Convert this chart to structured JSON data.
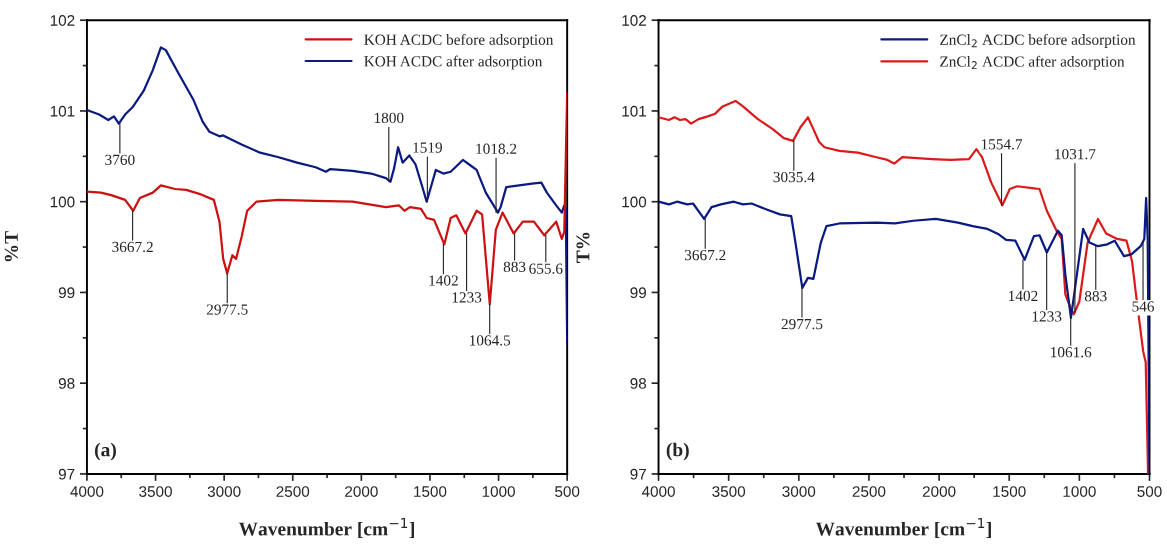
{
  "chart_data": [
    {
      "type": "line",
      "xlabel": "Wavenumber [cm$^{−1}$]",
      "ylabel": "%T",
      "xlim": [
        4000,
        500
      ],
      "ylim": [
        97,
        102
      ],
      "xticks": [
        4000,
        3500,
        3000,
        2500,
        2000,
        1500,
        1000,
        500
      ],
      "yticks": [
        97,
        98,
        99,
        100,
        101,
        102
      ],
      "grid": false,
      "legend": "top right",
      "marker": "none",
      "line_style": "solid",
      "series": [
        {
          "name": "KOH ACDC before adsorption",
          "color": "#cc1111",
          "x": [
            4000,
            3898,
            3817,
            3722,
            3663,
            3614,
            3520,
            3461,
            3358,
            3277,
            3169,
            3075,
            3034,
            3007,
            2978,
            2940,
            2913,
            2873,
            2832,
            2765,
            2603,
            2333,
            2064,
            1821,
            1727,
            1686,
            1646,
            1565,
            1524,
            1470,
            1395,
            1349,
            1308,
            1241,
            1160,
            1120,
            1064,
            1020,
            971,
            890,
            823,
            742,
            667,
            580,
            539,
            521,
            500
          ],
          "values": [
            100.11,
            100.1,
            100.07,
            100.02,
            99.9,
            100.04,
            100.1,
            100.18,
            100.14,
            100.13,
            100.08,
            100.02,
            99.78,
            99.37,
            99.21,
            99.41,
            99.37,
            99.61,
            99.9,
            100.0,
            100.02,
            100.01,
            100.0,
            99.94,
            99.96,
            99.9,
            99.94,
            99.92,
            99.82,
            99.8,
            99.53,
            99.82,
            99.85,
            99.65,
            99.9,
            99.86,
            98.87,
            99.69,
            99.88,
            99.65,
            99.78,
            99.78,
            99.63,
            99.78,
            99.59,
            99.67,
            101.2
          ]
        },
        {
          "name": "KOH ACDC after adsorption",
          "color": "#0a1a80",
          "x": [
            4000,
            3911,
            3844,
            3803,
            3768,
            3722,
            3668,
            3587,
            3520,
            3461,
            3425,
            3331,
            3223,
            3156,
            3107,
            3034,
            3007,
            2873,
            2738,
            2603,
            2468,
            2333,
            2258,
            2226,
            2064,
            1929,
            1821,
            1788,
            1761,
            1732,
            1699,
            1651,
            1605,
            1551,
            1524,
            1497,
            1457,
            1403,
            1349,
            1260,
            1214,
            1160,
            1093,
            1004,
            985,
            944,
            850,
            756,
            688,
            648,
            580,
            539,
            521,
            510,
            500
          ],
          "values": [
            101.01,
            100.96,
            100.9,
            100.94,
            100.86,
            100.96,
            101.04,
            101.22,
            101.45,
            101.7,
            101.67,
            101.41,
            101.12,
            100.88,
            100.77,
            100.72,
            100.73,
            100.63,
            100.54,
            100.49,
            100.43,
            100.38,
            100.33,
            100.36,
            100.34,
            100.31,
            100.26,
            100.22,
            100.37,
            100.6,
            100.43,
            100.51,
            100.41,
            100.14,
            100.0,
            100.14,
            100.35,
            100.31,
            100.33,
            100.46,
            100.41,
            100.35,
            100.1,
            99.88,
            99.94,
            100.16,
            100.18,
            100.2,
            100.21,
            100.1,
            99.96,
            99.88,
            99.96,
            99.9,
            98.45
          ]
        }
      ],
      "annotations": [
        {
          "text": "3760",
          "x": 3760,
          "y": 100.86
        },
        {
          "text": "1800",
          "x": 1800,
          "y": 100.22
        },
        {
          "text": "1519",
          "x": 1519,
          "y": 100.0
        },
        {
          "text": "1018.2",
          "x": 1018.2,
          "y": 99.88
        },
        {
          "text": "3667.2",
          "x": 3667.2,
          "y": 99.9
        },
        {
          "text": "2977.5",
          "x": 2977.5,
          "y": 99.21
        },
        {
          "text": "1402",
          "x": 1402,
          "y": 99.53
        },
        {
          "text": "1233",
          "x": 1233,
          "y": 99.65
        },
        {
          "text": "1064.5",
          "x": 1064.5,
          "y": 98.87
        },
        {
          "text": "883",
          "x": 883,
          "y": 99.65
        },
        {
          "text": "655.6",
          "x": 655.6,
          "y": 99.63
        },
        "(a)"
      ]
    },
    {
      "type": "line",
      "xlabel": "Wavenumber [cm$^{−1}$]",
      "ylabel": "T%",
      "xlim": [
        4000,
        500
      ],
      "ylim": [
        97,
        102
      ],
      "xticks": [
        4000,
        3500,
        3000,
        2500,
        2000,
        1500,
        1000,
        500
      ],
      "yticks": [
        97,
        98,
        99,
        100,
        101,
        102
      ],
      "grid": false,
      "legend": "top right",
      "marker": "none",
      "line_style": "solid",
      "series": [
        {
          "name": "ZnCl$_{2}$ ACDC before adsorption",
          "color": "#0a1a80",
          "x": [
            4000,
            3926,
            3868,
            3794,
            3754,
            3675,
            3622,
            3556,
            3464,
            3398,
            3337,
            3239,
            3134,
            3054,
            3028,
            2975,
            2935,
            2896,
            2843,
            2803,
            2711,
            2447,
            2315,
            2183,
            2024,
            1866,
            1760,
            1655,
            1575,
            1522,
            1456,
            1390,
            1324,
            1284,
            1232,
            1153,
            1126,
            1100,
            1060,
            973,
            928,
            867,
            801,
            748,
            682,
            629,
            563,
            537,
            524,
            513,
            500
          ],
          "values": [
            100.0,
            99.97,
            100.0,
            99.97,
            99.98,
            99.81,
            99.94,
            99.97,
            100.0,
            99.97,
            99.98,
            99.92,
            99.86,
            99.84,
            99.59,
            99.05,
            99.16,
            99.15,
            99.55,
            99.73,
            99.76,
            99.77,
            99.76,
            99.79,
            99.81,
            99.77,
            99.73,
            99.7,
            99.64,
            99.58,
            99.57,
            99.36,
            99.62,
            99.63,
            99.44,
            99.68,
            99.63,
            99.2,
            98.72,
            99.7,
            99.55,
            99.51,
            99.53,
            99.57,
            99.4,
            99.42,
            99.51,
            99.59,
            100.04,
            99.6,
            97.0
          ]
        },
        {
          "name": "ZnCl$_{2}$ ACDC after adsorption",
          "color": "#dd1a1a",
          "x": [
            4000,
            3926,
            3886,
            3847,
            3807,
            3768,
            3715,
            3649,
            3596,
            3543,
            3451,
            3398,
            3292,
            3186,
            3107,
            3041,
            2988,
            2935,
            2896,
            2856,
            2817,
            2711,
            2579,
            2447,
            2368,
            2320,
            2262,
            2051,
            1919,
            1787,
            1734,
            1694,
            1628,
            1549,
            1496,
            1443,
            1337,
            1284,
            1232,
            1166,
            1126,
            1100,
            1060,
            1040,
            1000,
            941,
            867,
            809,
            730,
            664,
            624,
            598,
            545,
            527,
            510
          ],
          "values": [
            100.93,
            100.9,
            100.93,
            100.9,
            100.91,
            100.86,
            100.91,
            100.94,
            100.97,
            101.05,
            101.11,
            101.05,
            100.91,
            100.8,
            100.7,
            100.67,
            100.82,
            100.93,
            100.8,
            100.66,
            100.6,
            100.56,
            100.54,
            100.49,
            100.46,
            100.42,
            100.49,
            100.47,
            100.46,
            100.47,
            100.58,
            100.49,
            100.21,
            99.96,
            100.14,
            100.17,
            100.15,
            100.14,
            99.9,
            99.69,
            99.59,
            98.98,
            98.82,
            98.76,
            98.9,
            99.55,
            99.81,
            99.65,
            99.59,
            99.57,
            99.34,
            99.0,
            98.35,
            98.23,
            97.0
          ]
        }
      ],
      "annotations": [
        {
          "text": "3035.4",
          "x": 3035.4,
          "y": 100.67
        },
        {
          "text": "1554.7",
          "x": 1554.7,
          "y": 99.96
        },
        {
          "text": "1031.7",
          "x": 1031.7,
          "y": 98.78
        },
        {
          "text": "3667.2",
          "x": 3667.2,
          "y": 99.81
        },
        {
          "text": "2977.5",
          "x": 2977.5,
          "y": 99.05
        },
        {
          "text": "1402",
          "x": 1402,
          "y": 99.36
        },
        {
          "text": "1233",
          "x": 1233,
          "y": 99.44
        },
        {
          "text": "1061.6",
          "x": 1061.6,
          "y": 98.74
        },
        {
          "text": "883",
          "x": 883,
          "y": 99.51
        },
        {
          "text": "546",
          "x": 546,
          "y": 99.55
        },
        "(b)"
      ]
    }
  ]
}
